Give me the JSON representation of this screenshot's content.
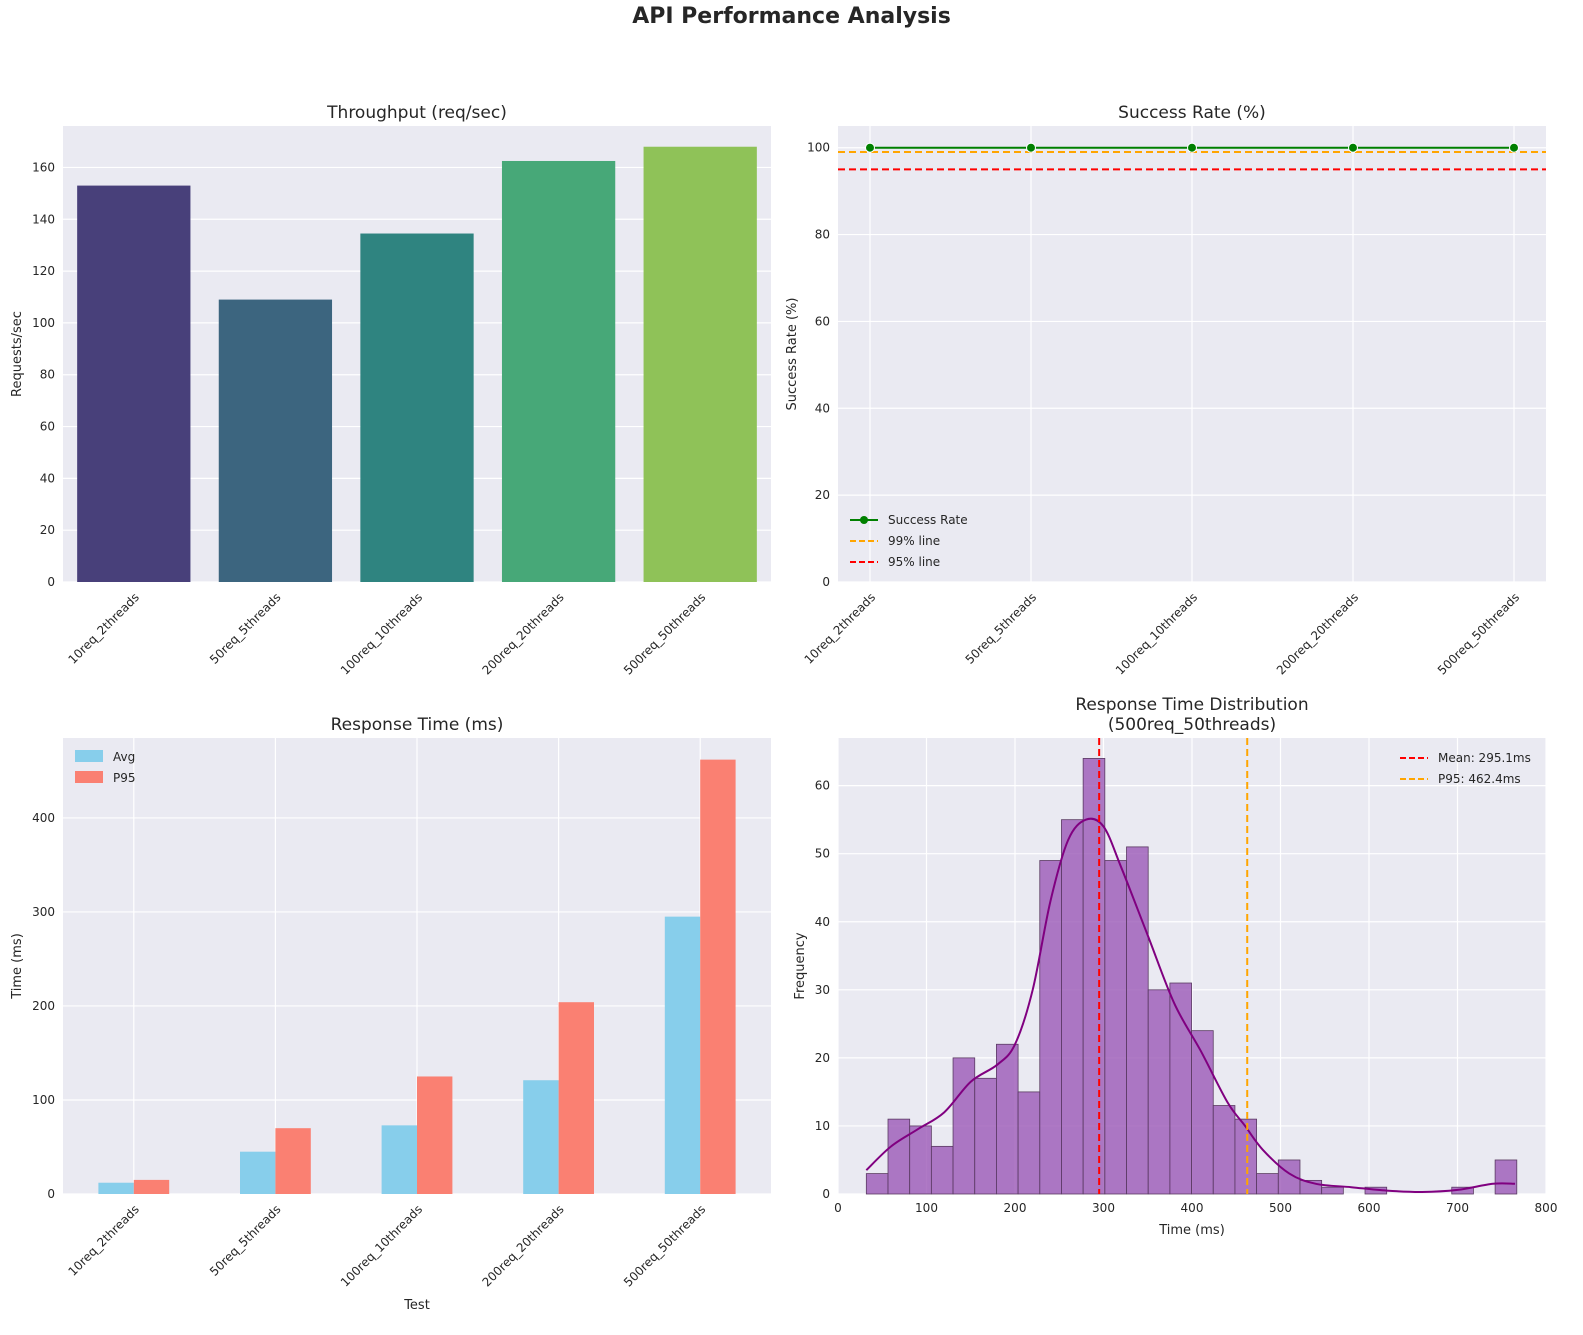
{
  "suptitle": "API Performance Analysis",
  "colors": {
    "plot_bg": "#eaeaf2",
    "grid": "#ffffff",
    "bars": [
      "#48407a",
      "#3c657f",
      "#2f8480",
      "#47a878",
      "#8fc258"
    ],
    "avg": "#87ceeb",
    "p95": "#fa8072",
    "success_line": "#008000",
    "line99": "#ffa500",
    "line95": "#ff0000",
    "hist": "#9b59b6",
    "kde": "#800080"
  },
  "chart_data": [
    {
      "id": "throughput",
      "type": "bar",
      "title": "Throughput (req/sec)",
      "ylabel": "Requests/sec",
      "xlabel": "",
      "categories": [
        "10req_2threads",
        "50req_5threads",
        "100req_10threads",
        "200req_20threads",
        "500req_50threads"
      ],
      "values": [
        153,
        109,
        134.5,
        162.5,
        168
      ],
      "ylim": [
        0,
        176
      ],
      "yticks": [
        0,
        20,
        40,
        60,
        80,
        100,
        120,
        140,
        160
      ],
      "grid": true
    },
    {
      "id": "success",
      "type": "line",
      "title": "Success Rate (%)",
      "ylabel": "Success Rate (%)",
      "xlabel": "",
      "categories": [
        "10req_2threads",
        "50req_5threads",
        "100req_10threads",
        "200req_20threads",
        "500req_50threads"
      ],
      "series": [
        {
          "name": "Success Rate",
          "values": [
            100,
            100,
            100,
            100,
            100
          ]
        }
      ],
      "reference_lines": [
        {
          "name": "99% line",
          "y": 99
        },
        {
          "name": "95% line",
          "y": 95
        }
      ],
      "ylim": [
        0,
        105
      ],
      "yticks": [
        0,
        20,
        40,
        60,
        80,
        100
      ],
      "legend": "lower-left",
      "grid": true
    },
    {
      "id": "response",
      "type": "bar",
      "title": "Response Time (ms)",
      "ylabel": "Time (ms)",
      "xlabel": "Test",
      "categories": [
        "10req_2threads",
        "50req_5threads",
        "100req_10threads",
        "200req_20threads",
        "500req_50threads"
      ],
      "series": [
        {
          "name": "Avg",
          "values": [
            12,
            45,
            73,
            121,
            295
          ]
        },
        {
          "name": "P95",
          "values": [
            15,
            70,
            125,
            204,
            462
          ]
        }
      ],
      "ylim": [
        0,
        485
      ],
      "yticks": [
        0,
        100,
        200,
        300,
        400
      ],
      "legend": "top-left",
      "grid": true
    },
    {
      "id": "distribution",
      "type": "histogram",
      "title": "Response Time Distribution",
      "subtitle": "(500req_50threads)",
      "ylabel": "Frequency",
      "xlabel": "Time (ms)",
      "bin_start": 32,
      "bin_width": 24.5,
      "counts": [
        3,
        11,
        10,
        7,
        20,
        17,
        22,
        15,
        49,
        55,
        64,
        49,
        51,
        30,
        31,
        24,
        13,
        11,
        3,
        5,
        2,
        1,
        0,
        1,
        0,
        0,
        0,
        1,
        0,
        5
      ],
      "kde": [
        [
          32,
          3.5
        ],
        [
          60,
          7
        ],
        [
          90,
          9.5
        ],
        [
          120,
          12
        ],
        [
          150,
          16.5
        ],
        [
          180,
          19
        ],
        [
          200,
          22
        ],
        [
          220,
          30
        ],
        [
          240,
          43
        ],
        [
          260,
          52
        ],
        [
          280,
          55
        ],
        [
          300,
          54
        ],
        [
          320,
          48
        ],
        [
          350,
          38
        ],
        [
          380,
          28
        ],
        [
          410,
          21
        ],
        [
          440,
          13.5
        ],
        [
          460,
          10
        ],
        [
          480,
          6.5
        ],
        [
          510,
          3
        ],
        [
          540,
          1.5
        ],
        [
          580,
          1
        ],
        [
          620,
          0.5
        ],
        [
          660,
          0.3
        ],
        [
          700,
          0.6
        ],
        [
          740,
          1.5
        ],
        [
          765,
          1.5
        ]
      ],
      "mean_line": {
        "label": "Mean: 295.1ms",
        "x": 295.1
      },
      "p95_line": {
        "label": "P95: 462.4ms",
        "x": 462.4
      },
      "xlim": [
        0,
        800
      ],
      "ylim": [
        0,
        67
      ],
      "xticks": [
        0,
        100,
        200,
        300,
        400,
        500,
        600,
        700,
        800
      ],
      "yticks": [
        0,
        10,
        20,
        30,
        40,
        50,
        60
      ],
      "legend": "top-right",
      "grid": true
    }
  ]
}
